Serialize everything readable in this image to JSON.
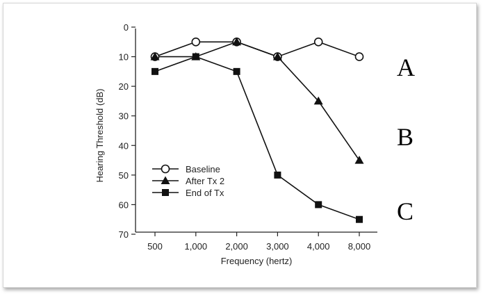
{
  "chart_data": {
    "type": "line",
    "title": "",
    "xlabel": "Frequency (hertz)",
    "ylabel": "Hearing Threshold (dB)",
    "categories": [
      "500",
      "1,000",
      "2,000",
      "3,000",
      "4,000",
      "8,000"
    ],
    "y_ticks": [
      "0",
      "10",
      "20",
      "30",
      "40",
      "50",
      "60",
      "70"
    ],
    "ylim": [
      0,
      70
    ],
    "y_inverted": true,
    "grid": false,
    "legend_position": "lower-left",
    "series": [
      {
        "name": "Baseline",
        "marker": "open-circle",
        "values": [
          10,
          5,
          5,
          10,
          5,
          10
        ]
      },
      {
        "name": "After Tx 2",
        "marker": "filled-triangle",
        "values": [
          10,
          10,
          5,
          10,
          25,
          45
        ]
      },
      {
        "name": "End of Tx",
        "marker": "filled-square",
        "values": [
          15,
          10,
          15,
          50,
          60,
          65
        ]
      }
    ],
    "annotations": [
      "A",
      "B",
      "C"
    ]
  }
}
